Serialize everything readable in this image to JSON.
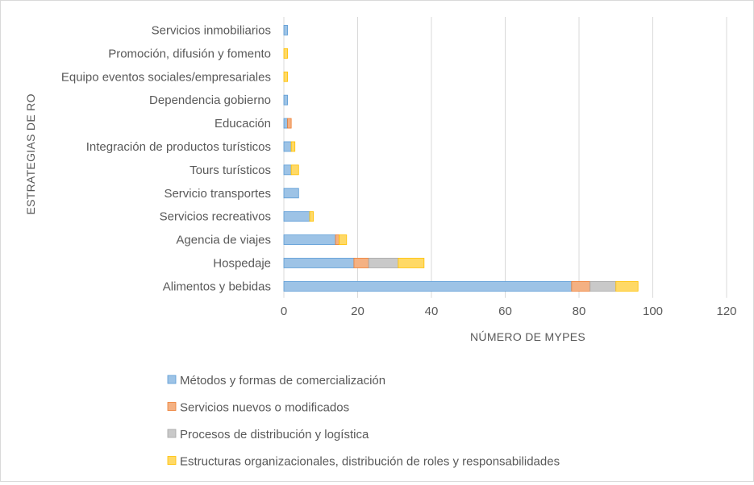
{
  "chart_data": {
    "type": "bar",
    "orientation": "horizontal",
    "stacked": true,
    "title": "",
    "xlabel": "NÚMERO DE MYPES",
    "ylabel": "ESTRATEGIAS DE RO",
    "xlim": [
      0,
      120
    ],
    "xticks": [
      "0",
      "20",
      "40",
      "60",
      "80",
      "100",
      "120"
    ],
    "xtick_values": [
      0,
      20,
      40,
      60,
      80,
      100,
      120
    ],
    "grid": "vertical",
    "legend_position": "bottom",
    "categories": [
      "Servicios inmobiliarios",
      "Promoción, difusión y fomento",
      "Equipo eventos sociales/empresariales",
      "Dependencia gobierno",
      "Educación",
      "Integración de productos turísticos",
      "Tours turísticos",
      "Servicio transportes",
      "Servicios recreativos",
      "Agencia de viajes",
      "Hospedaje",
      "Alimentos y bebidas"
    ],
    "series": [
      {
        "name": "Métodos y formas de comercialización",
        "color": "#9dc3e6",
        "stroke": "#5b9bd5",
        "values": [
          1,
          0,
          0,
          1,
          1,
          2,
          2,
          4,
          7,
          14,
          19,
          78
        ]
      },
      {
        "name": "Servicios nuevos o modificados",
        "color": "#f4b183",
        "stroke": "#ed7d31",
        "values": [
          0,
          0,
          0,
          0,
          1,
          0,
          0,
          0,
          0,
          1,
          4,
          5
        ]
      },
      {
        "name": "Procesos de distribución y logística",
        "color": "#c9c9c9",
        "stroke": "#a5a5a5",
        "values": [
          0,
          0,
          0,
          0,
          0,
          0,
          0,
          0,
          0,
          0,
          8,
          7
        ]
      },
      {
        "name": "Estructuras organizacionales, distribución de roles y responsabilidades",
        "color": "#ffd966",
        "stroke": "#ffc000",
        "values": [
          0,
          1,
          1,
          0,
          0,
          1,
          2,
          0,
          1,
          2,
          7,
          6
        ]
      }
    ]
  }
}
